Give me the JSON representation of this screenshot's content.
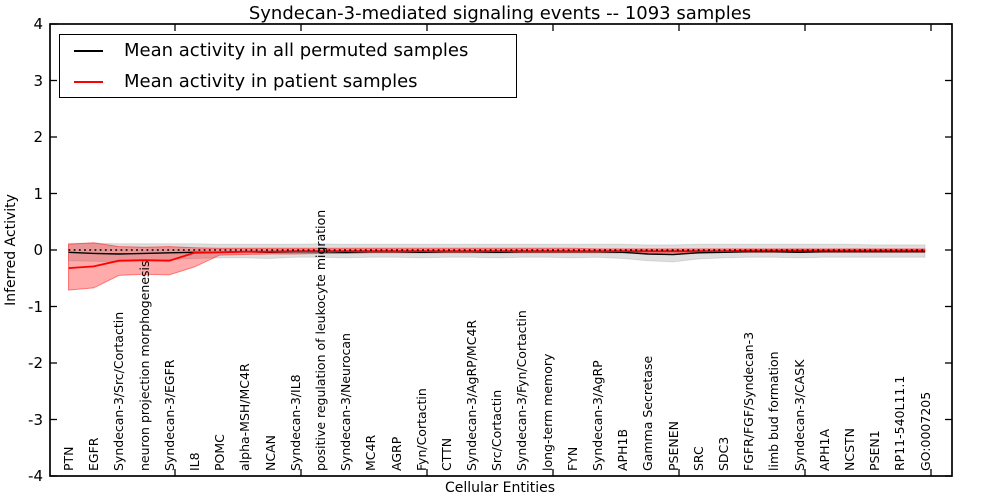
{
  "figure": {
    "background": "#ffffff"
  },
  "chart_data": {
    "type": "line",
    "title": "Syndecan-3-mediated signaling events -- 1093 samples",
    "xlabel": "Cellular Entities",
    "ylabel": "Inferred Activity",
    "ylim": [
      -4,
      4
    ],
    "ytick_labels": [
      "4",
      "3",
      "2",
      "1",
      "0",
      "-1",
      "-2",
      "-3",
      "-4"
    ],
    "grid": false,
    "legend_position": "upper left",
    "zero_line": {
      "y": 0,
      "style": "dotted",
      "color": "#000000"
    },
    "categories": [
      "PTN",
      "EGFR",
      "Syndecan-3/Src/Cortactin",
      "neuron projection morphogenesis",
      "Syndecan-3/EGFR",
      "IL8",
      "POMC",
      "alpha-MSH/MC4R",
      "NCAN",
      "Syndecan-3/IL8",
      "positive regulation of leukocyte migration",
      "Syndecan-3/Neurocan",
      "MC4R",
      "AGRP",
      "Fyn/Cortactin",
      "CTTN",
      "Syndecan-3/AgRP/MC4R",
      "Src/Cortactin",
      "Syndecan-3/Fyn/Cortactin",
      "long-term memory",
      "FYN",
      "Syndecan-3/AgRP",
      "APH1B",
      "Gamma Secretase",
      "PSENEN",
      "SRC",
      "SDC3",
      "FGFR/FGF/Syndecan-3",
      "limb bud formation",
      "Syndecan-3/CASK",
      "APH1A",
      "NCSTN",
      "PSEN1",
      "RP11-540L11.1",
      "GO:0007205"
    ],
    "series": [
      {
        "name": "Mean activity in all permuted samples",
        "color": "#000000",
        "band_fill": "rgba(0,0,0,0.13)",
        "band_edge": "rgba(0,0,0,0.10)",
        "values": [
          -0.04,
          -0.06,
          -0.07,
          -0.06,
          -0.05,
          -0.04,
          -0.04,
          -0.03,
          -0.04,
          -0.03,
          -0.03,
          -0.04,
          -0.03,
          -0.03,
          -0.04,
          -0.03,
          -0.03,
          -0.04,
          -0.03,
          -0.03,
          -0.03,
          -0.03,
          -0.04,
          -0.07,
          -0.08,
          -0.05,
          -0.04,
          -0.03,
          -0.03,
          -0.04,
          -0.03,
          -0.03,
          -0.03,
          -0.03,
          -0.03
        ],
        "band_upper": [
          0.12,
          0.12,
          0.11,
          0.11,
          0.11,
          0.11,
          0.1,
          0.1,
          0.1,
          0.1,
          0.11,
          0.1,
          0.1,
          0.1,
          0.1,
          0.1,
          0.1,
          0.1,
          0.1,
          0.1,
          0.1,
          0.1,
          0.1,
          0.09,
          0.09,
          0.1,
          0.1,
          0.1,
          0.1,
          0.1,
          0.1,
          0.1,
          0.09,
          0.09,
          0.09
        ],
        "band_lower": [
          -0.19,
          -0.2,
          -0.21,
          -0.19,
          -0.17,
          -0.15,
          -0.14,
          -0.14,
          -0.15,
          -0.13,
          -0.13,
          -0.14,
          -0.13,
          -0.13,
          -0.14,
          -0.13,
          -0.13,
          -0.14,
          -0.13,
          -0.13,
          -0.14,
          -0.13,
          -0.15,
          -0.19,
          -0.21,
          -0.16,
          -0.14,
          -0.13,
          -0.13,
          -0.14,
          -0.13,
          -0.13,
          -0.13,
          -0.13,
          -0.13
        ]
      },
      {
        "name": "Mean activity in patient samples",
        "color": "#ff0000",
        "band_fill": "rgba(255,0,0,0.33)",
        "band_edge": "rgba(255,0,0,0.45)",
        "values": [
          -0.32,
          -0.29,
          -0.19,
          -0.18,
          -0.19,
          -0.05,
          -0.04,
          -0.03,
          -0.03,
          -0.02,
          -0.02,
          -0.02,
          -0.02,
          -0.02,
          -0.02,
          -0.02,
          -0.02,
          -0.02,
          -0.02,
          -0.02,
          -0.02,
          -0.02,
          -0.02,
          -0.02,
          -0.02,
          -0.02,
          -0.02,
          -0.01,
          -0.01,
          -0.01,
          -0.01,
          -0.01,
          -0.01,
          -0.01,
          -0.01
        ],
        "band_upper": [
          0.1,
          0.13,
          0.06,
          0.05,
          0.06,
          0.04,
          0.03,
          0.03,
          0.03,
          0.03,
          0.03,
          0.03,
          0.03,
          0.03,
          0.03,
          0.03,
          0.03,
          0.03,
          0.03,
          0.03,
          0.03,
          0.02,
          0.02,
          0.02,
          0.02,
          0.02,
          0.02,
          0.02,
          0.02,
          0.02,
          0.02,
          0.02,
          0.02,
          0.02,
          0.02
        ],
        "band_lower": [
          -0.71,
          -0.67,
          -0.45,
          -0.43,
          -0.44,
          -0.3,
          -0.09,
          -0.08,
          -0.07,
          -0.07,
          -0.06,
          -0.06,
          -0.05,
          -0.05,
          -0.05,
          -0.05,
          -0.05,
          -0.05,
          -0.05,
          -0.05,
          -0.05,
          -0.05,
          -0.05,
          -0.05,
          -0.05,
          -0.04,
          -0.04,
          -0.04,
          -0.04,
          -0.04,
          -0.04,
          -0.04,
          -0.04,
          -0.04,
          -0.04
        ]
      }
    ]
  }
}
